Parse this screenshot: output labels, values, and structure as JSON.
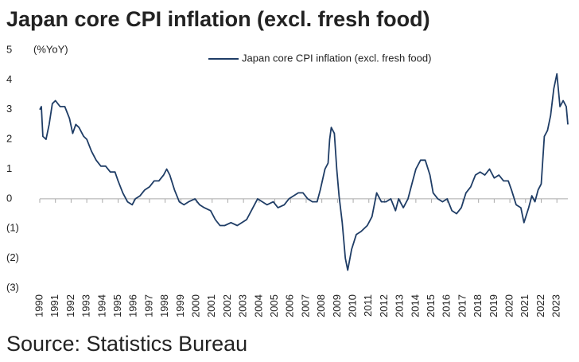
{
  "chart_data": {
    "type": "line",
    "title": "Japan core CPI inflation (excl. fresh food)",
    "y_label": "(%YoY)",
    "source": "Source: Statistics Bureau",
    "xlim": [
      1990,
      2023.7
    ],
    "xticks": [
      1990,
      1991,
      1992,
      1993,
      1994,
      1995,
      1996,
      1997,
      1998,
      1999,
      2000,
      2001,
      2002,
      2003,
      2004,
      2005,
      2006,
      2007,
      2008,
      2009,
      2010,
      2011,
      2012,
      2013,
      2014,
      2015,
      2016,
      2017,
      2018,
      2019,
      2020,
      2021,
      2022,
      2023
    ],
    "ylim": [
      -3,
      5
    ],
    "yticks": [
      5,
      4,
      3,
      2,
      1,
      0,
      {
        "value": -1,
        "label": "(1)"
      },
      {
        "value": -2,
        "label": "(2)"
      },
      {
        "value": -3,
        "label": "(3)"
      }
    ],
    "legend": "top",
    "series": [
      {
        "name": "Japan core CPI inflation (excl. fresh food)",
        "color": "#1f3d66",
        "x": [
          1990.0,
          1990.1,
          1990.2,
          1990.4,
          1990.6,
          1990.8,
          1991.0,
          1991.3,
          1991.6,
          1991.9,
          1992.1,
          1992.3,
          1992.5,
          1992.8,
          1993.0,
          1993.3,
          1993.6,
          1993.9,
          1994.2,
          1994.5,
          1994.8,
          1995.0,
          1995.3,
          1995.6,
          1995.9,
          1996.1,
          1996.4,
          1996.7,
          1997.0,
          1997.3,
          1997.6,
          1997.9,
          1998.1,
          1998.3,
          1998.6,
          1998.9,
          1999.2,
          1999.5,
          1999.9,
          2000.2,
          2000.5,
          2000.9,
          2001.2,
          2001.5,
          2001.8,
          2002.2,
          2002.6,
          2002.9,
          2003.2,
          2003.6,
          2003.9,
          2004.2,
          2004.5,
          2004.9,
          2005.2,
          2005.6,
          2005.9,
          2006.2,
          2006.5,
          2006.8,
          2007.1,
          2007.4,
          2007.7,
          2007.9,
          2008.2,
          2008.4,
          2008.5,
          2008.6,
          2008.8,
          2008.95,
          2009.1,
          2009.3,
          2009.5,
          2009.65,
          2009.9,
          2010.2,
          2010.5,
          2010.9,
          2011.2,
          2011.5,
          2011.8,
          2012.1,
          2012.4,
          2012.7,
          2012.9,
          2013.2,
          2013.5,
          2013.8,
          2014.0,
          2014.3,
          2014.6,
          2014.9,
          2015.1,
          2015.4,
          2015.7,
          2016.0,
          2016.3,
          2016.6,
          2016.9,
          2017.2,
          2017.5,
          2017.8,
          2018.1,
          2018.4,
          2018.7,
          2019.0,
          2019.3,
          2019.6,
          2019.9,
          2020.1,
          2020.4,
          2020.7,
          2020.9,
          2021.2,
          2021.4,
          2021.6,
          2021.8,
          2022.0,
          2022.2,
          2022.4,
          2022.6,
          2022.8,
          2023.0,
          2023.2,
          2023.4,
          2023.6,
          2023.7
        ],
        "values": [
          3.0,
          3.1,
          2.1,
          2.0,
          2.5,
          3.2,
          3.3,
          3.1,
          3.1,
          2.7,
          2.2,
          2.5,
          2.4,
          2.1,
          2.0,
          1.6,
          1.3,
          1.1,
          1.1,
          0.9,
          0.9,
          0.6,
          0.2,
          -0.1,
          -0.2,
          0.0,
          0.1,
          0.3,
          0.4,
          0.6,
          0.6,
          0.8,
          1.0,
          0.8,
          0.3,
          -0.1,
          -0.2,
          -0.1,
          0.0,
          -0.2,
          -0.3,
          -0.4,
          -0.7,
          -0.9,
          -0.9,
          -0.8,
          -0.9,
          -0.8,
          -0.7,
          -0.3,
          0.0,
          -0.1,
          -0.2,
          -0.1,
          -0.3,
          -0.2,
          0.0,
          0.1,
          0.2,
          0.2,
          0.0,
          -0.1,
          -0.1,
          0.3,
          1.0,
          1.2,
          2.0,
          2.4,
          2.2,
          1.0,
          0.1,
          -0.8,
          -2.0,
          -2.4,
          -1.7,
          -1.2,
          -1.1,
          -0.9,
          -0.6,
          0.2,
          -0.1,
          -0.1,
          0.0,
          -0.4,
          0.0,
          -0.3,
          0.0,
          0.6,
          1.0,
          1.3,
          1.3,
          0.8,
          0.2,
          0.0,
          -0.1,
          0.0,
          -0.4,
          -0.5,
          -0.3,
          0.2,
          0.4,
          0.8,
          0.9,
          0.8,
          1.0,
          0.7,
          0.8,
          0.6,
          0.6,
          0.3,
          -0.2,
          -0.3,
          -0.8,
          -0.3,
          0.1,
          -0.1,
          0.3,
          0.5,
          2.1,
          2.3,
          2.8,
          3.7,
          4.2,
          3.1,
          3.3,
          3.1,
          2.5
        ]
      }
    ]
  }
}
